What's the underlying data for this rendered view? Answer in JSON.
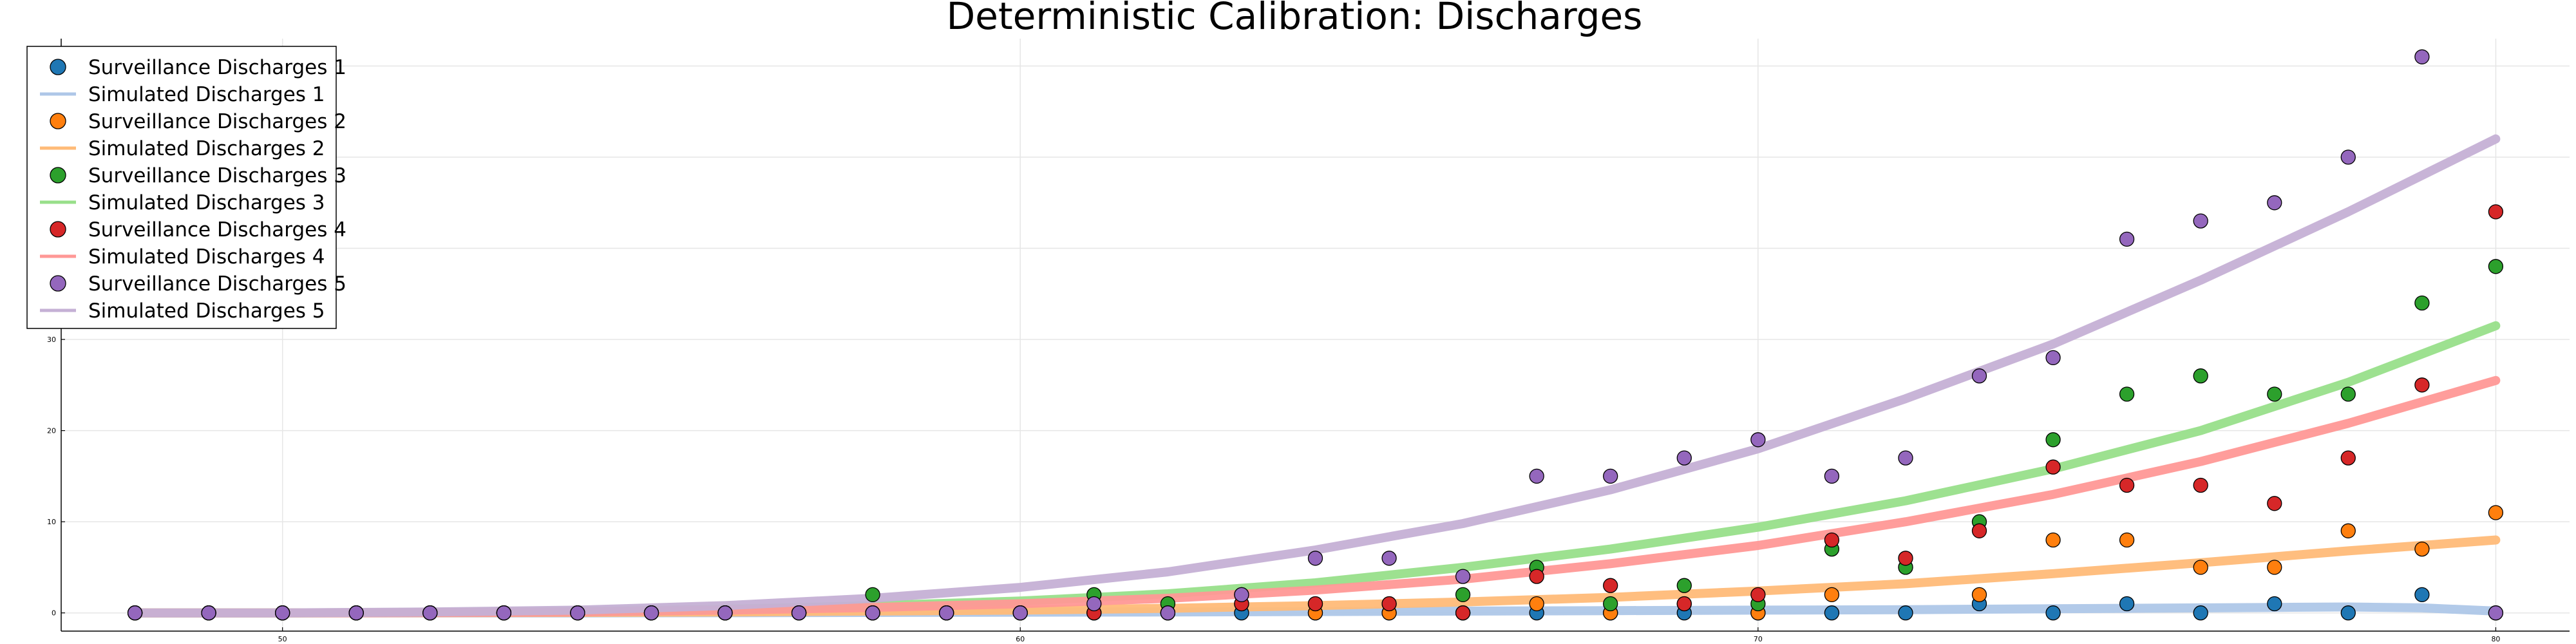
{
  "chart_data": {
    "type": "scatter",
    "title": "Deterministic Calibration: Discharges",
    "xlabel": "",
    "ylabel": "",
    "xlim": [
      47,
      81
    ],
    "ylim": [
      -2,
      63
    ],
    "x_ticks": [
      50,
      60,
      70,
      80
    ],
    "y_ticks": [
      0,
      10,
      20,
      30,
      40,
      50,
      60
    ],
    "grid": true,
    "legend_position": "top-left",
    "series": [
      {
        "name": "Surveillance Discharges 1",
        "kind": "scatter",
        "color": "#1f77b4",
        "x": [
          48,
          49,
          50,
          51,
          52,
          53,
          54,
          55,
          56,
          57,
          58,
          59,
          60,
          61,
          62,
          63,
          64,
          65,
          66,
          67,
          68,
          69,
          70,
          71,
          72,
          73,
          74,
          75,
          76,
          77,
          78,
          79,
          80
        ],
        "y": [
          0,
          0,
          0,
          0,
          0,
          0,
          0,
          0,
          0,
          0,
          0,
          0,
          0,
          0,
          0,
          0,
          0,
          0,
          0,
          0,
          0,
          0,
          0,
          0,
          0,
          1,
          0,
          1,
          0,
          1,
          0,
          2,
          0
        ]
      },
      {
        "name": "Simulated Discharges 1",
        "kind": "line",
        "color": "#aec7e8",
        "x": [
          48,
          50,
          52,
          54,
          56,
          58,
          60,
          62,
          64,
          66,
          68,
          70,
          72,
          74,
          76,
          77,
          78,
          79,
          80
        ],
        "y": [
          0,
          0,
          0,
          0,
          0.02,
          0.05,
          0.08,
          0.1,
          0.15,
          0.2,
          0.25,
          0.3,
          0.35,
          0.45,
          0.55,
          0.6,
          0.65,
          0.55,
          0.2
        ]
      },
      {
        "name": "Surveillance Discharges 2",
        "kind": "scatter",
        "color": "#ff7f0e",
        "x": [
          48,
          49,
          50,
          51,
          52,
          53,
          54,
          55,
          56,
          57,
          58,
          59,
          60,
          61,
          62,
          63,
          64,
          65,
          66,
          67,
          68,
          69,
          70,
          71,
          72,
          73,
          74,
          75,
          76,
          77,
          78,
          79,
          80
        ],
        "y": [
          0,
          0,
          0,
          0,
          0,
          0,
          0,
          0,
          0,
          0,
          0,
          0,
          0,
          0,
          0,
          2,
          0,
          0,
          0,
          1,
          0,
          1,
          0,
          2,
          5,
          2,
          8,
          8,
          5,
          5,
          9,
          7,
          11
        ]
      },
      {
        "name": "Simulated Discharges 2",
        "kind": "line",
        "color": "#ffbb78",
        "x": [
          48,
          50,
          52,
          54,
          56,
          58,
          60,
          62,
          64,
          66,
          68,
          70,
          72,
          74,
          76,
          78,
          80
        ],
        "y": [
          0,
          0,
          0.02,
          0.05,
          0.1,
          0.2,
          0.3,
          0.5,
          0.8,
          1.2,
          1.7,
          2.4,
          3.2,
          4.3,
          5.5,
          6.8,
          8
        ]
      },
      {
        "name": "Surveillance Discharges 3",
        "kind": "scatter",
        "color": "#2ca02c",
        "x": [
          48,
          49,
          50,
          51,
          52,
          53,
          54,
          55,
          56,
          57,
          58,
          59,
          60,
          61,
          62,
          63,
          64,
          65,
          66,
          67,
          68,
          69,
          70,
          71,
          72,
          73,
          74,
          75,
          76,
          77,
          78,
          79,
          80
        ],
        "y": [
          0,
          0,
          0,
          0,
          0,
          0,
          0,
          0,
          0,
          0,
          2,
          0,
          0,
          2,
          1,
          1,
          1,
          1,
          2,
          5,
          1,
          3,
          1,
          7,
          5,
          10,
          19,
          24,
          26,
          24,
          24,
          34,
          38
        ]
      },
      {
        "name": "Simulated Discharges 3",
        "kind": "line",
        "color": "#98df8a",
        "x": [
          48,
          50,
          52,
          54,
          56,
          58,
          60,
          62,
          64,
          66,
          68,
          70,
          72,
          74,
          76,
          78,
          80
        ],
        "y": [
          0,
          0,
          0.05,
          0.15,
          0.4,
          0.8,
          1.3,
          2.1,
          3.3,
          5,
          7,
          9.4,
          12.3,
          15.8,
          20,
          25.3,
          31.5
        ]
      },
      {
        "name": "Surveillance Discharges 4",
        "kind": "scatter",
        "color": "#d62728",
        "x": [
          48,
          49,
          50,
          51,
          52,
          53,
          54,
          55,
          56,
          57,
          58,
          59,
          60,
          61,
          62,
          63,
          64,
          65,
          66,
          67,
          68,
          69,
          70,
          71,
          72,
          73,
          74,
          75,
          76,
          77,
          78,
          79,
          80
        ],
        "y": [
          0,
          0,
          0,
          0,
          0,
          0,
          0,
          0,
          0,
          0,
          0,
          0,
          0,
          0,
          0,
          1,
          1,
          1,
          0,
          4,
          3,
          1,
          2,
          8,
          6,
          9,
          16,
          14,
          14,
          12,
          17,
          25,
          44
        ]
      },
      {
        "name": "Simulated Discharges 4",
        "kind": "line",
        "color": "#ff9896",
        "x": [
          48,
          50,
          52,
          54,
          56,
          58,
          60,
          62,
          64,
          66,
          68,
          70,
          72,
          74,
          76,
          78,
          80
        ],
        "y": [
          0,
          0,
          0.03,
          0.1,
          0.3,
          0.6,
          1,
          1.6,
          2.5,
          3.7,
          5.4,
          7.4,
          10,
          13,
          16.6,
          20.8,
          25.5
        ]
      },
      {
        "name": "Surveillance Discharges 5",
        "kind": "scatter",
        "color": "#9467bd",
        "x": [
          48,
          49,
          50,
          51,
          52,
          53,
          54,
          55,
          56,
          57,
          58,
          59,
          60,
          61,
          62,
          63,
          64,
          65,
          66,
          67,
          68,
          69,
          70,
          71,
          72,
          73,
          74,
          75,
          76,
          77,
          78,
          79,
          80
        ],
        "y": [
          0,
          0,
          0,
          0,
          0,
          0,
          0,
          0,
          0,
          0,
          0,
          0,
          0,
          1,
          0,
          2,
          6,
          6,
          4,
          15,
          15,
          17,
          19,
          15,
          17,
          26,
          28,
          41,
          43,
          45,
          50,
          61,
          0
        ]
      },
      {
        "name": "Simulated Discharges 5",
        "kind": "line",
        "color": "#c5b0d5",
        "x": [
          48,
          50,
          52,
          54,
          56,
          58,
          60,
          62,
          64,
          66,
          68,
          70,
          72,
          74,
          76,
          78,
          80
        ],
        "y": [
          0,
          0,
          0.1,
          0.3,
          0.8,
          1.6,
          2.8,
          4.5,
          6.9,
          9.8,
          13.5,
          18,
          23.5,
          29.5,
          36.5,
          44,
          52
        ]
      }
    ]
  }
}
